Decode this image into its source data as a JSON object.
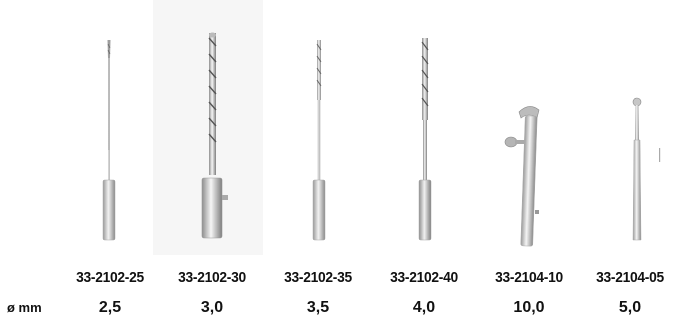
{
  "row_label": "ø mm",
  "items": [
    {
      "code": "33-2102-25",
      "diameter": "2,5"
    },
    {
      "code": "33-2102-30",
      "diameter": "3,0"
    },
    {
      "code": "33-2102-35",
      "diameter": "3,5"
    },
    {
      "code": "33-2102-40",
      "diameter": "4,0"
    },
    {
      "code": "33-2104-10",
      "diameter": "10,0"
    },
    {
      "code": "33-2104-05",
      "diameter": "5,0"
    }
  ]
}
